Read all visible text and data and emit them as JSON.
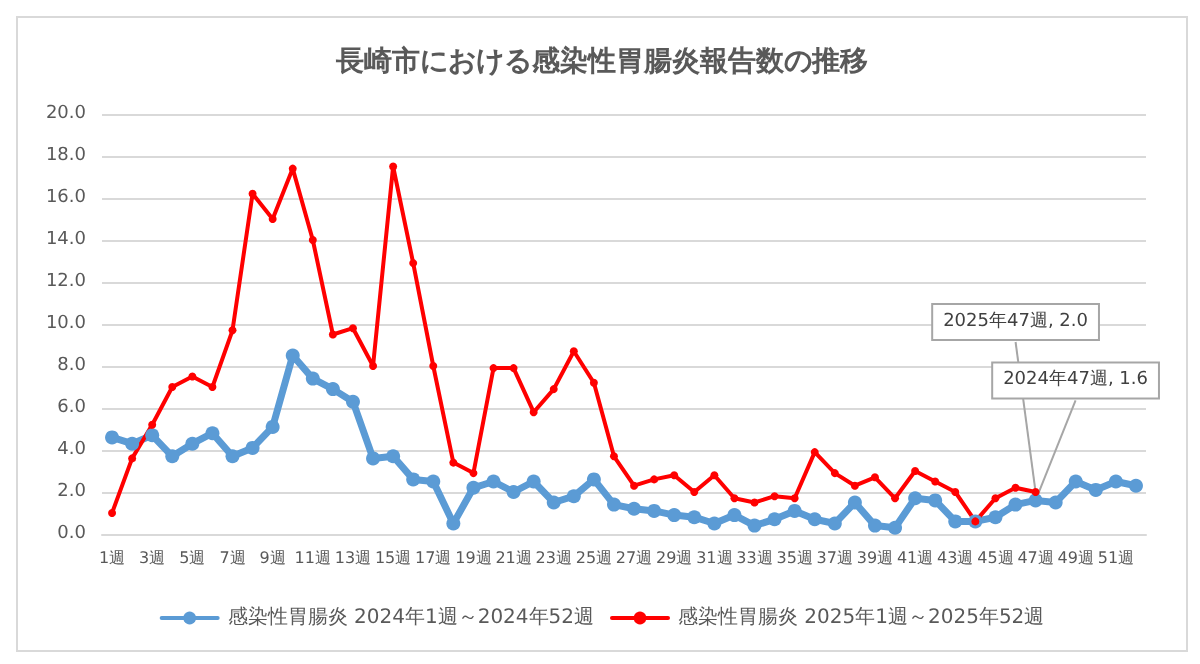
{
  "chart_data": {
    "type": "line",
    "title": "長崎市における感染性胃腸炎報告数の推移",
    "categories": [
      "1週",
      null,
      "3週",
      null,
      "5週",
      null,
      "7週",
      null,
      "9週",
      null,
      "11週",
      null,
      "13週",
      null,
      "15週",
      null,
      "17週",
      null,
      "19週",
      null,
      "21週",
      null,
      "23週",
      null,
      "25週",
      null,
      "27週",
      null,
      "29週",
      null,
      "31週",
      null,
      "33週",
      null,
      "35週",
      null,
      "37週",
      null,
      "39週",
      null,
      "41週",
      null,
      "43週",
      null,
      "45週",
      null,
      "47週",
      null,
      "49週",
      null,
      "51週",
      null
    ],
    "series": [
      {
        "name": "感染性胃腸炎 2024年1週～2024年52週",
        "color": "#5b9bd5",
        "values": [
          4.6,
          4.3,
          4.7,
          3.7,
          4.3,
          4.8,
          3.7,
          4.1,
          5.1,
          8.5,
          7.4,
          6.9,
          6.3,
          3.6,
          3.7,
          2.6,
          2.5,
          0.5,
          2.2,
          2.5,
          2.0,
          2.5,
          1.5,
          1.8,
          2.6,
          1.4,
          1.2,
          1.1,
          0.9,
          0.8,
          0.5,
          0.9,
          0.4,
          0.7,
          1.1,
          0.7,
          0.5,
          1.5,
          0.4,
          0.3,
          1.7,
          1.6,
          0.6,
          0.6,
          0.8,
          1.4,
          1.6,
          1.5,
          2.5,
          2.1,
          2.5,
          2.3
        ]
      },
      {
        "name": "感染性胃腸炎 2025年1週～2025年52週",
        "color": "#ff0000",
        "values": [
          1.0,
          3.6,
          5.2,
          7.0,
          7.5,
          7.0,
          9.7,
          16.2,
          15.0,
          17.4,
          14.0,
          9.5,
          9.8,
          8.0,
          17.5,
          12.9,
          8.0,
          3.4,
          2.9,
          7.9,
          7.9,
          5.8,
          6.9,
          8.7,
          7.2,
          3.7,
          2.3,
          2.6,
          2.8,
          2.0,
          2.8,
          1.7,
          1.5,
          1.8,
          1.7,
          3.9,
          2.9,
          2.3,
          2.7,
          1.7,
          3.0,
          2.5,
          2.0,
          0.6,
          1.7,
          2.2,
          2.0,
          null,
          null,
          null,
          null,
          null
        ]
      }
    ],
    "ylim": [
      0,
      20
    ],
    "yticks": [
      {
        "value": 0,
        "label": "0.0"
      },
      {
        "value": 2,
        "label": "2.0"
      },
      {
        "value": 4,
        "label": "4.0"
      },
      {
        "value": 6,
        "label": "6.0"
      },
      {
        "value": 8,
        "label": "8.0"
      },
      {
        "value": 10,
        "label": "10.0"
      },
      {
        "value": 12,
        "label": "12.0"
      },
      {
        "value": 14,
        "label": "14.0"
      },
      {
        "value": 16,
        "label": "16.0"
      },
      {
        "value": 18,
        "label": "18.0"
      },
      {
        "value": 20,
        "label": "20.0"
      }
    ],
    "annotations": [
      {
        "text": "2025年47週, 2.0",
        "x": "47週",
        "y": 2.0
      },
      {
        "text": "2024年47週, 1.6",
        "x": "47週",
        "y": 1.6
      }
    ],
    "grid": "y",
    "legend": "bottom",
    "marker": "circle",
    "line_style": "solid"
  }
}
